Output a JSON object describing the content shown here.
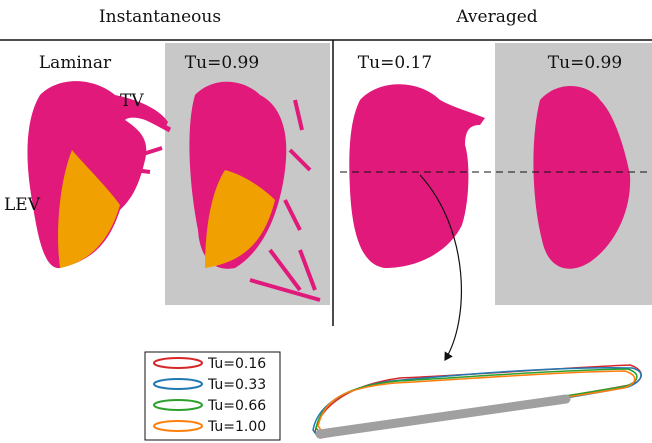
{
  "header": {
    "left": "Instantaneous",
    "right": "Averaged"
  },
  "panels": [
    {
      "label": "Laminar"
    },
    {
      "label": "Tu=0.99"
    },
    {
      "label": "Tu=0.17"
    },
    {
      "label": "Tu=0.99"
    }
  ],
  "annotations": {
    "tv": "TV",
    "lev": "LEV"
  },
  "legend": [
    "Tu=0.16",
    "Tu=0.33",
    "Tu=0.66",
    "Tu=1.00"
  ]
}
